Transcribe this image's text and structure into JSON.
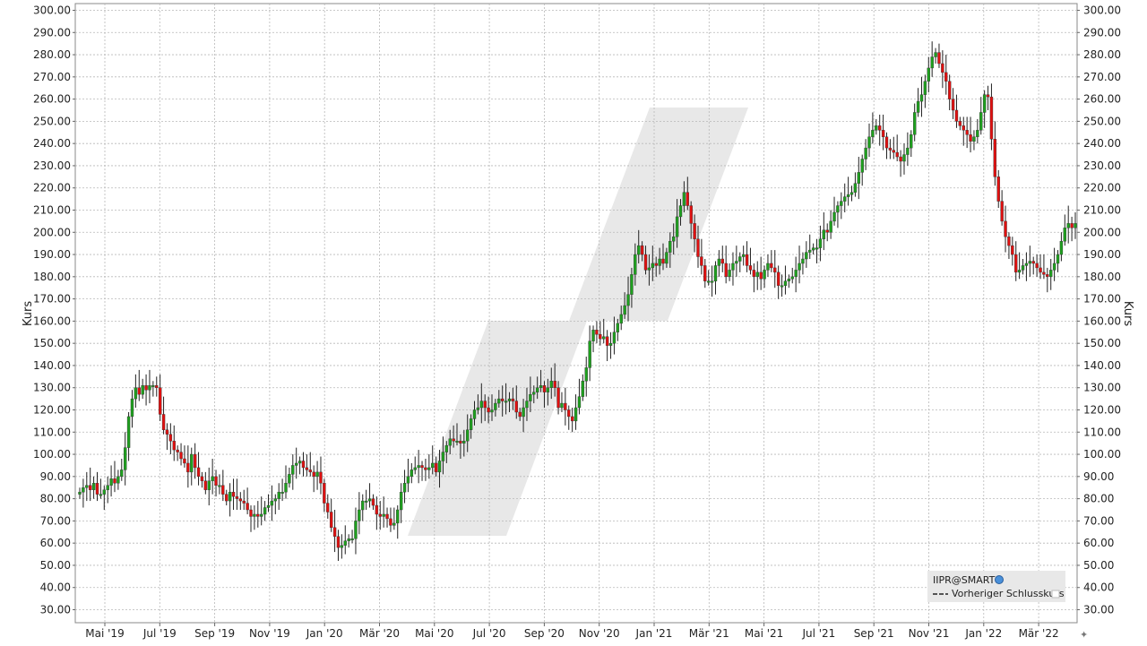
{
  "chart_data": {
    "type": "candlestick",
    "symbol": "IIPR@SMART",
    "ylabel_left": "Kurs",
    "ylabel_right": "Kurs",
    "ylim": [
      25,
      305
    ],
    "y_ticks": [
      "30.00",
      "40.00",
      "50.00",
      "60.00",
      "70.00",
      "80.00",
      "90.00",
      "100.00",
      "110.00",
      "120.00",
      "130.00",
      "140.00",
      "150.00",
      "160.00",
      "170.00",
      "180.00",
      "190.00",
      "200.00",
      "210.00",
      "220.00",
      "230.00",
      "240.00",
      "250.00",
      "260.00",
      "270.00",
      "280.00",
      "290.00",
      "300.00"
    ],
    "x_ticks": [
      "Mai '19",
      "Jul '19",
      "Sep '19",
      "Nov '19",
      "Jan '20",
      "Mär '20",
      "Mai '20",
      "Jul '20",
      "Sep '20",
      "Nov '20",
      "Jan '21",
      "Mär '21",
      "Mai '21",
      "Jul '21",
      "Sep '21",
      "Nov '21",
      "Jan '22",
      "Mär '22"
    ],
    "grid": true,
    "legend_position": "bottom-right",
    "legend_entries": [
      "Vorheriger Schlusskurs"
    ],
    "colors": {
      "up": "#1ea01e",
      "down": "#e01010",
      "wick": "#222222",
      "grid": "#b8b8b8",
      "watermark": "#e6e6e6",
      "legend_bg": "#e8e8e8"
    },
    "series": [
      {
        "close": [
          83,
          85,
          86,
          84,
          87,
          82,
          82,
          84,
          86,
          89,
          87,
          90,
          93,
          103,
          117,
          125,
          130,
          127,
          131,
          129,
          131,
          131,
          130,
          118,
          111,
          109,
          106,
          102,
          101,
          98,
          96,
          92,
          100,
          94,
          90,
          88,
          84,
          88,
          90,
          86,
          86,
          82,
          79,
          83,
          81,
          80,
          79,
          78,
          75,
          72,
          73,
          72,
          73,
          76,
          77,
          79,
          80,
          83,
          83,
          87,
          91,
          95,
          96,
          97,
          94,
          93,
          92,
          90,
          92,
          87,
          78,
          74,
          67,
          63,
          58,
          59,
          61,
          62,
          62,
          70,
          75,
          79,
          79,
          80,
          77,
          73,
          72,
          73,
          71,
          68,
          69,
          75,
          83,
          87,
          90,
          93,
          94,
          95,
          94,
          93,
          94,
          96,
          92,
          97,
          101,
          104,
          107,
          106,
          106,
          105,
          106,
          111,
          116,
          120,
          121,
          124,
          121,
          119,
          120,
          123,
          125,
          124,
          124,
          125,
          124,
          119,
          117,
          121,
          124,
          127,
          128,
          130,
          131,
          128,
          130,
          133,
          130,
          121,
          123,
          120,
          117,
          115,
          121,
          126,
          133,
          139,
          151,
          156,
          154,
          152,
          153,
          149,
          150,
          155,
          159,
          163,
          167,
          172,
          181,
          190,
          194,
          190,
          183,
          184,
          186,
          185,
          188,
          186,
          191,
          196,
          198,
          207,
          212,
          218,
          212,
          204,
          197,
          189,
          185,
          178,
          178,
          178,
          185,
          188,
          186,
          180,
          183,
          186,
          187,
          189,
          190,
          185,
          183,
          180,
          182,
          179,
          183,
          186,
          184,
          182,
          176,
          176,
          178,
          179,
          180,
          183,
          186,
          188,
          191,
          192,
          193,
          193,
          197,
          201,
          200,
          205,
          209,
          212,
          214,
          216,
          217,
          218,
          222,
          227,
          233,
          238,
          243,
          246,
          248,
          246,
          243,
          238,
          237,
          236,
          234,
          232,
          235,
          238,
          244,
          254,
          259,
          262,
          268,
          274,
          279,
          281,
          276,
          272,
          268,
          260,
          255,
          250,
          248,
          246,
          244,
          241,
          243,
          246,
          254,
          262,
          261,
          242,
          225,
          214,
          205,
          198,
          194,
          190,
          182,
          183,
          185,
          186,
          187,
          186,
          184,
          182,
          181,
          180,
          183,
          186,
          190,
          196,
          202,
          204,
          202,
          204
        ]
      }
    ]
  }
}
